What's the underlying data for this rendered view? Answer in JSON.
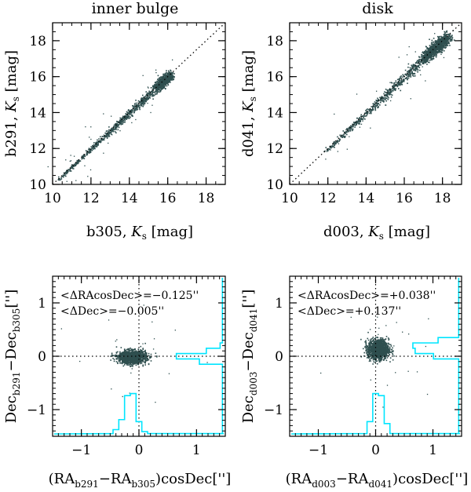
{
  "colors": {
    "points": "#2f4f4f",
    "histogram": "#00e5ff",
    "frame": "#000000"
  },
  "chart_data": [
    {
      "type": "scatter",
      "title": "inner bulge",
      "xlabel": "b305, Ks [mag]",
      "ylabel": "b291, Ks [mag]",
      "xlim": [
        10,
        19
      ],
      "ylim": [
        10,
        19
      ],
      "xticks": [
        10,
        12,
        14,
        16,
        18
      ],
      "yticks": [
        10,
        12,
        14,
        16,
        18
      ],
      "reference_line": "y = x (dotted)",
      "cloud": {
        "range": [
          10.2,
          16.2
        ],
        "scatter_mag": 0.06,
        "dense_end": [
          15.4,
          16.1
        ]
      }
    },
    {
      "type": "scatter",
      "title": "disk",
      "xlabel": "d003, Ks [mag]",
      "ylabel": "d041, Ks [mag]",
      "xlim": [
        10,
        19
      ],
      "ylim": [
        10,
        19
      ],
      "xticks": [
        10,
        12,
        14,
        16,
        18
      ],
      "yticks": [
        10,
        12,
        14,
        16,
        18
      ],
      "reference_line": "y = x (dotted)",
      "cloud": {
        "range": [
          11.8,
          18.3
        ],
        "scatter_mag": 0.08,
        "dense_end": [
          17.0,
          18.2
        ]
      }
    },
    {
      "type": "scatter",
      "title": "",
      "xlabel": "(RA_b291 − RA_b305)cosDec ['']",
      "ylabel": "Dec_b291 − Dec_b305 ['']",
      "xlim": [
        -1.5,
        1.5
      ],
      "ylim": [
        -1.5,
        1.5
      ],
      "xticks": [
        -1,
        0,
        1
      ],
      "yticks": [
        -1,
        0,
        1
      ],
      "annotations": [
        "<ΔRAcosDec>=−0.125''",
        "<ΔDec>=−0.005''"
      ],
      "centroid": [
        -0.125,
        -0.005
      ],
      "spread": [
        0.12,
        0.06
      ],
      "histogram_x": {
        "bin_edges": [
          -0.45,
          -0.35,
          -0.25,
          -0.15,
          -0.05,
          0.05,
          0.15
        ],
        "heights": [
          0.1,
          0.35,
          0.95,
          1.0,
          0.3,
          0.05
        ]
      },
      "histogram_y": {
        "bin_edges": [
          -0.15,
          -0.05,
          0.05,
          0.15,
          0.25
        ],
        "heights": [
          0.5,
          1.0,
          0.35,
          0.05
        ]
      }
    },
    {
      "type": "scatter",
      "title": "",
      "xlabel": "(RA_d003 − RA_d041)cosDec ['']",
      "ylabel": "Dec_d003 − Dec_d041 ['']",
      "xlim": [
        -1.5,
        1.5
      ],
      "ylim": [
        -1.5,
        1.5
      ],
      "xticks": [
        -1,
        0,
        1
      ],
      "yticks": [
        -1,
        0,
        1
      ],
      "annotations": [
        "<ΔRAcosDec>=+0.038''",
        "<ΔDec>=+0.137''"
      ],
      "centroid": [
        0.038,
        0.137
      ],
      "spread": [
        0.09,
        0.09
      ],
      "histogram_x": {
        "bin_edges": [
          -0.15,
          -0.05,
          0.05,
          0.15,
          0.25
        ],
        "heights": [
          0.3,
          1.0,
          0.95,
          0.25
        ]
      },
      "histogram_y": {
        "bin_edges": [
          -0.05,
          0.05,
          0.15,
          0.25,
          0.35
        ],
        "heights": [
          0.55,
          0.95,
          1.0,
          0.45
        ]
      }
    }
  ]
}
